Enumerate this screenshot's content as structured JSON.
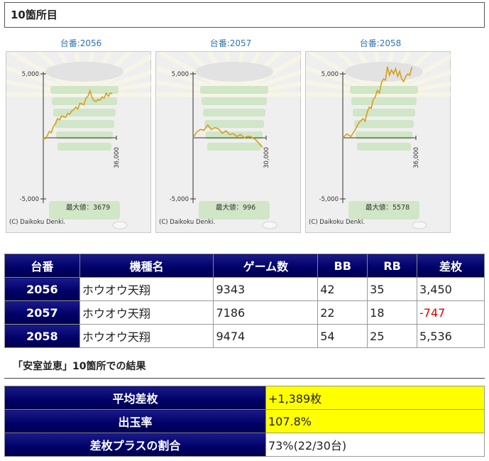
{
  "section": {
    "title": "10箇所目"
  },
  "charts": [
    {
      "title": "台番:2056",
      "y_top": "5,000",
      "y_bottom": "-5,000",
      "x_end": "36,000",
      "max_label": "最大値：3679",
      "credit": "(C) Daikoku Denki.",
      "line_color": "#d4a017",
      "series": [
        [
          0,
          0
        ],
        [
          1000,
          -80
        ],
        [
          2000,
          200
        ],
        [
          3000,
          500
        ],
        [
          4000,
          400
        ],
        [
          5000,
          900
        ],
        [
          6000,
          1100
        ],
        [
          7000,
          1500
        ],
        [
          8000,
          1400
        ],
        [
          9000,
          1700
        ],
        [
          10000,
          1650
        ],
        [
          11000,
          1600
        ],
        [
          12000,
          1900
        ],
        [
          13000,
          1850
        ],
        [
          14000,
          2100
        ],
        [
          15000,
          2200
        ],
        [
          16000,
          2400
        ],
        [
          17000,
          2250
        ],
        [
          18000,
          2700
        ],
        [
          19000,
          2650
        ],
        [
          20000,
          2600
        ],
        [
          21000,
          3100
        ],
        [
          22000,
          3250
        ],
        [
          23000,
          3679
        ],
        [
          24000,
          3150
        ],
        [
          25000,
          2900
        ],
        [
          26000,
          2850
        ],
        [
          27000,
          3000
        ],
        [
          28000,
          2950
        ],
        [
          29000,
          3200
        ],
        [
          30000,
          3100
        ],
        [
          31000,
          3500
        ],
        [
          32000,
          3250
        ],
        [
          33000,
          3500
        ],
        [
          34000,
          3450
        ]
      ]
    },
    {
      "title": "台番:2057",
      "y_top": "5,000",
      "y_bottom": "-5,000",
      "x_end": "30,000",
      "max_label": "最大値：996",
      "credit": "(C) Daikoku Denki.",
      "line_color": "#d4a017",
      "series": [
        [
          0,
          0
        ],
        [
          1500,
          450
        ],
        [
          3000,
          650
        ],
        [
          4500,
          600
        ],
        [
          6000,
          996
        ],
        [
          7500,
          650
        ],
        [
          9000,
          800
        ],
        [
          10500,
          700
        ],
        [
          12000,
          350
        ],
        [
          13500,
          550
        ],
        [
          15000,
          250
        ],
        [
          16500,
          320
        ],
        [
          18000,
          100
        ],
        [
          19500,
          260
        ],
        [
          21000,
          0
        ],
        [
          22500,
          120
        ],
        [
          24000,
          60
        ],
        [
          25500,
          -120
        ],
        [
          27000,
          -420
        ],
        [
          28500,
          -747
        ]
      ]
    },
    {
      "title": "台番:2058",
      "y_top": "5,000",
      "y_bottom": "-5,000",
      "x_end": "36,000",
      "max_label": "最大値：5578",
      "credit": "(C) Daikoku Denki.",
      "line_color": "#d4a017",
      "series": [
        [
          0,
          0
        ],
        [
          2000,
          300
        ],
        [
          4000,
          100
        ],
        [
          6000,
          600
        ],
        [
          8000,
          1200
        ],
        [
          10000,
          1500
        ],
        [
          11000,
          1300
        ],
        [
          12000,
          2000
        ],
        [
          13000,
          2400
        ],
        [
          14000,
          2300
        ],
        [
          15000,
          3000
        ],
        [
          16000,
          3200
        ],
        [
          17000,
          3700
        ],
        [
          18000,
          3500
        ],
        [
          19000,
          4300
        ],
        [
          20000,
          4600
        ],
        [
          21000,
          4500
        ],
        [
          22000,
          5578
        ],
        [
          23000,
          4900
        ],
        [
          24000,
          5300
        ],
        [
          25000,
          5000
        ],
        [
          26000,
          5400
        ],
        [
          27000,
          4800
        ],
        [
          28000,
          5200
        ],
        [
          29000,
          4600
        ],
        [
          30000,
          4400
        ],
        [
          31000,
          4800
        ],
        [
          32000,
          5000
        ],
        [
          33000,
          4900
        ],
        [
          34000,
          5536
        ]
      ]
    }
  ],
  "table": {
    "headers": [
      "台番",
      "機種名",
      "ゲーム数",
      "BB",
      "RB",
      "差枚"
    ],
    "rows": [
      {
        "number": "2056",
        "model": "ホウオウ天翔",
        "games": "9343",
        "bb": "42",
        "rb": "35",
        "diff": "3,450"
      },
      {
        "number": "2057",
        "model": "ホウオウ天翔",
        "games": "7186",
        "bb": "22",
        "rb": "18",
        "diff": "-747"
      },
      {
        "number": "2058",
        "model": "ホウオウ天翔",
        "games": "9474",
        "bb": "54",
        "rb": "25",
        "diff": "5,536"
      }
    ]
  },
  "result": {
    "title": "「安室並恵」10箇所での結果"
  },
  "summary": [
    {
      "label": "平均差枚",
      "value": "+1,389枚",
      "highlight": true
    },
    {
      "label": "出玉率",
      "value": "107.8%",
      "highlight": true
    },
    {
      "label": "差枚プラスの割合",
      "value": "73%(22/30台)",
      "highlight": false
    }
  ],
  "colors": {
    "header_navy": "#000066",
    "highlight": "#ffff00",
    "negative": "#e00000",
    "chart_title": "#2e74b5"
  }
}
